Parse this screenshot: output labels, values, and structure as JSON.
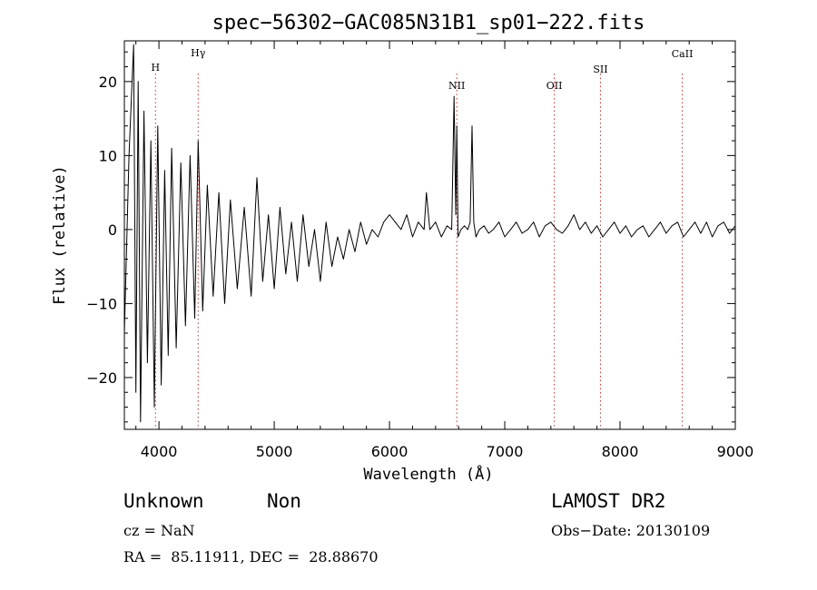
{
  "chart_data": {
    "type": "line",
    "title": "spec−56302−GAC085N31B1_sp01−222.fits",
    "xlabel": "Wavelength (Å)",
    "ylabel": "Flux (relative)",
    "xlim": [
      3700,
      9000
    ],
    "ylim": [
      -27,
      25.5
    ],
    "x_ticks": [
      4000,
      5000,
      6000,
      7000,
      8000,
      9000
    ],
    "x_tick_labels": [
      "4000",
      "5000",
      "6000",
      "7000",
      "8000",
      "9000"
    ],
    "y_ticks": [
      -20,
      -10,
      0,
      10,
      20
    ],
    "y_tick_labels": [
      "−20",
      "−10",
      "0",
      "10",
      "20"
    ],
    "grid": false,
    "line_color": "#000000",
    "marker_color": "#d62728",
    "lines": [
      {
        "label": "H",
        "x": 3970
      },
      {
        "label": "Hγ",
        "x": 4340
      },
      {
        "label": "NII",
        "x": 6584
      },
      {
        "label": "OII",
        "x": 7430
      },
      {
        "label": "SII",
        "x": 7830
      },
      {
        "label": "CaII",
        "x": 8540
      }
    ],
    "series": [
      {
        "x": [
          3700,
          3740,
          3780,
          3800,
          3820,
          3840,
          3870,
          3900,
          3930,
          3960,
          3990,
          4020,
          4050,
          4080,
          4110,
          4150,
          4190,
          4230,
          4270,
          4310,
          4340,
          4380,
          4420,
          4470,
          4520,
          4570,
          4620,
          4680,
          4740,
          4800,
          4850,
          4900,
          4950,
          5000,
          5050,
          5100,
          5150,
          5200,
          5250,
          5300,
          5350,
          5400,
          5450,
          5500,
          5550,
          5600,
          5650,
          5700,
          5750,
          5800,
          5850,
          5900,
          5950,
          6000,
          6050,
          6100,
          6150,
          6200,
          6250,
          6300,
          6320,
          6350,
          6400,
          6450,
          6500,
          6540,
          6560,
          6575,
          6584,
          6595,
          6620,
          6650,
          6680,
          6700,
          6716,
          6731,
          6750,
          6780,
          6820,
          6860,
          6900,
          6950,
          7000,
          7050,
          7100,
          7150,
          7200,
          7250,
          7300,
          7350,
          7400,
          7450,
          7500,
          7550,
          7600,
          7650,
          7700,
          7750,
          7800,
          7850,
          7900,
          7950,
          8000,
          8050,
          8100,
          8150,
          8200,
          8250,
          8300,
          8350,
          8400,
          8450,
          8500,
          8550,
          8600,
          8650,
          8700,
          8750,
          8800,
          8850,
          8900,
          8950,
          9000
        ],
        "values": [
          -14,
          10,
          25,
          -22,
          20,
          -26,
          16,
          -18,
          12,
          -24,
          14,
          -21,
          8,
          -17,
          11,
          -16,
          9,
          -13,
          10,
          -12,
          12,
          -11,
          6,
          -9,
          5,
          -10,
          4,
          -8,
          3,
          -9,
          7,
          -7,
          2,
          -8,
          3,
          -6,
          1,
          -7,
          2,
          -5,
          0,
          -7,
          1,
          -5,
          -1,
          -4,
          0,
          -3,
          1,
          -2,
          0,
          -1,
          1,
          2,
          1,
          0,
          2,
          -1,
          1,
          0,
          5,
          0,
          1,
          -1,
          0.5,
          0,
          18,
          2,
          14,
          -1,
          0,
          0.5,
          0,
          1,
          14,
          1,
          -1,
          0,
          0.5,
          -0.5,
          0,
          1,
          -1,
          0,
          1,
          -0.5,
          0,
          1,
          -1,
          0.5,
          1,
          0,
          -0.5,
          0.5,
          2,
          0,
          1,
          -0.5,
          0.5,
          -1,
          0,
          1,
          -0.5,
          0.5,
          -1,
          0,
          0.5,
          -1,
          0,
          1,
          -0.5,
          0.5,
          1,
          -1,
          0,
          1,
          -0.5,
          1,
          -1,
          0.5,
          1,
          -0.5,
          0.5
        ]
      }
    ]
  },
  "info": {
    "object_class": "Unknown",
    "object_subclass": "Non",
    "survey": "LAMOST DR2",
    "cz": "cz = NaN",
    "obs_date": "Obs−Date: 20130109",
    "coords": "RA =  85.11911, DEC =  28.88670"
  }
}
